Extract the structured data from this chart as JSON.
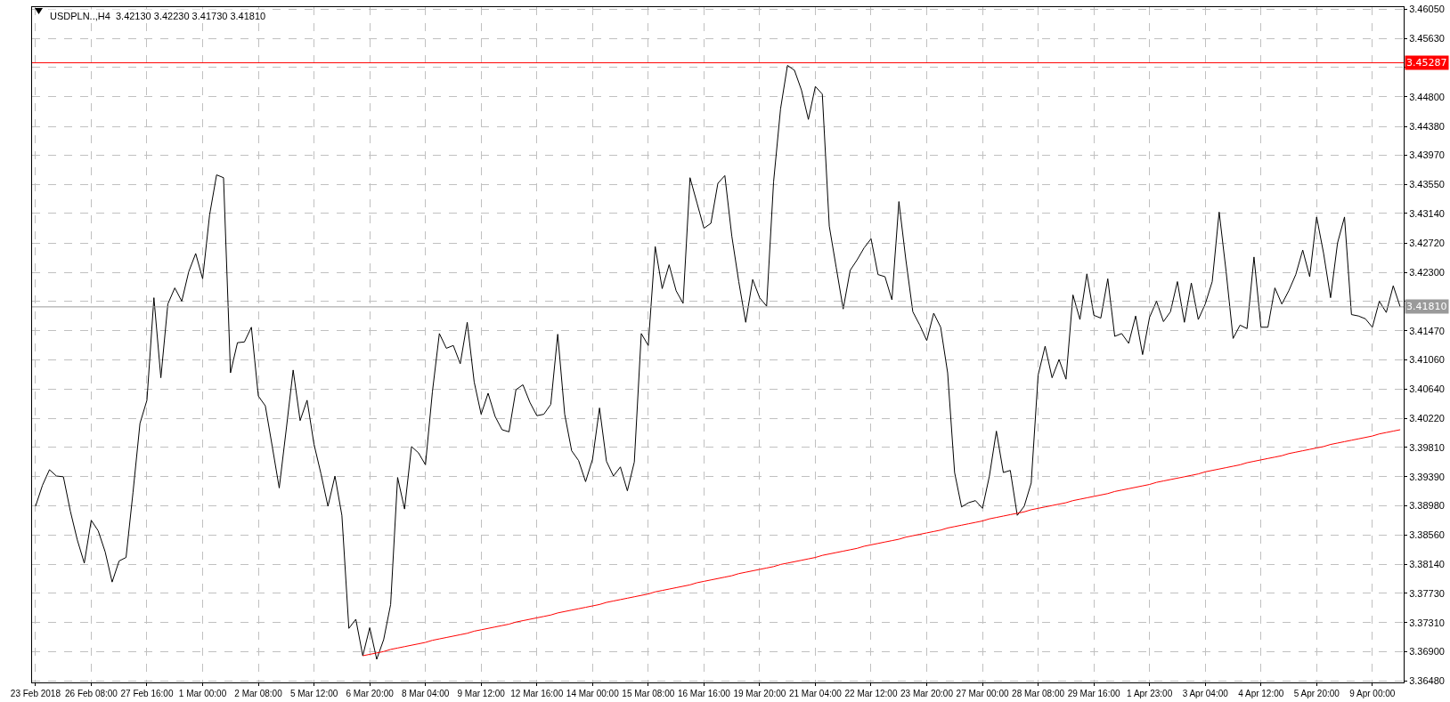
{
  "chart_data": {
    "type": "line",
    "title": "USDPLN..,H4  3.42130 3.42230 3.41730 3.41810",
    "categories": [
      "23 Feb 2018",
      null,
      null,
      null,
      null,
      null,
      null,
      null,
      "26 Feb 08:00",
      null,
      null,
      null,
      null,
      null,
      null,
      null,
      "27 Feb 16:00",
      null,
      null,
      null,
      null,
      null,
      null,
      null,
      "1 Mar 00:00",
      null,
      null,
      null,
      null,
      null,
      null,
      null,
      "2 Mar 08:00",
      null,
      null,
      null,
      null,
      null,
      null,
      null,
      "5 Mar 12:00",
      null,
      null,
      null,
      null,
      null,
      null,
      null,
      "6 Mar 20:00",
      null,
      null,
      null,
      null,
      null,
      null,
      null,
      "8 Mar 04:00",
      null,
      null,
      null,
      null,
      null,
      null,
      null,
      "9 Mar 12:00",
      null,
      null,
      null,
      null,
      null,
      null,
      null,
      "12 Mar 16:00",
      null,
      null,
      null,
      null,
      null,
      null,
      null,
      "14 Mar 00:00",
      null,
      null,
      null,
      null,
      null,
      null,
      null,
      "15 Mar 08:00",
      null,
      null,
      null,
      null,
      null,
      null,
      null,
      "16 Mar 16:00",
      null,
      null,
      null,
      null,
      null,
      null,
      null,
      "19 Mar 20:00",
      null,
      null,
      null,
      null,
      null,
      null,
      null,
      "21 Mar 04:00",
      null,
      null,
      null,
      null,
      null,
      null,
      null,
      "22 Mar 12:00",
      null,
      null,
      null,
      null,
      null,
      null,
      null,
      "23 Mar 20:00",
      null,
      null,
      null,
      null,
      null,
      null,
      null,
      "27 Mar 00:00",
      null,
      null,
      null,
      null,
      null,
      null,
      null,
      "28 Mar 08:00",
      null,
      null,
      null,
      null,
      null,
      null,
      null,
      "29 Mar 16:00",
      null,
      null,
      null,
      null,
      null,
      null,
      null,
      "1 Apr 23:00",
      null,
      null,
      null,
      null,
      null,
      null,
      null,
      "3 Apr 04:00",
      null,
      null,
      null,
      null,
      null,
      null,
      null,
      "4 Apr 12:00",
      null,
      null,
      null,
      null,
      null,
      null,
      null,
      "5 Apr 20:00",
      null,
      null,
      null,
      null,
      null,
      null,
      null,
      "9 Apr 00:00",
      null,
      null,
      null,
      null
    ],
    "series": [
      {
        "color": "#000000",
        "values": [
          3.3897,
          3.3927,
          3.3949,
          3.394,
          3.3939,
          3.389,
          3.3849,
          3.3816,
          3.3877,
          3.3862,
          3.3832,
          3.3789,
          3.3819,
          3.3824,
          3.3917,
          3.4015,
          3.4048,
          3.4194,
          3.408,
          3.4185,
          3.4208,
          3.4189,
          3.4231,
          3.4257,
          3.4221,
          3.4312,
          3.4369,
          3.4365,
          3.4087,
          3.413,
          3.4131,
          3.4152,
          3.4054,
          3.404,
          3.3982,
          3.3923,
          3.4006,
          3.4091,
          3.4019,
          3.4048,
          3.3985,
          3.3943,
          3.3897,
          3.394,
          3.3884,
          3.3723,
          3.3736,
          3.3684,
          3.3724,
          3.3679,
          3.3707,
          3.3757,
          3.3938,
          3.3893,
          3.3982,
          3.3973,
          3.3956,
          3.406,
          3.4143,
          3.4122,
          3.4126,
          3.41,
          3.4159,
          3.4074,
          3.4028,
          3.4058,
          3.4025,
          3.4006,
          3.4003,
          3.4063,
          3.407,
          3.4045,
          3.4026,
          3.4028,
          3.4042,
          3.4142,
          3.4028,
          3.3976,
          3.3962,
          3.3932,
          3.3964,
          3.4037,
          3.3961,
          3.394,
          3.3953,
          3.3919,
          3.396,
          3.4143,
          3.4126,
          3.4267,
          3.4207,
          3.4241,
          3.4204,
          3.4186,
          3.4365,
          3.4329,
          3.4293,
          3.43,
          3.4357,
          3.4368,
          3.4282,
          3.4217,
          3.4159,
          3.422,
          3.4194,
          3.4182,
          3.4359,
          3.4463,
          3.4525,
          3.4518,
          3.449,
          3.4448,
          3.4495,
          3.4484,
          3.4296,
          3.4237,
          3.4178,
          3.4233,
          3.4248,
          3.4265,
          3.4278,
          3.4227,
          3.4224,
          3.4191,
          3.4331,
          3.4248,
          3.4174,
          3.4155,
          3.4133,
          3.4172,
          3.4152,
          3.4087,
          3.3945,
          3.3896,
          3.3902,
          3.3905,
          3.3894,
          3.394,
          3.4004,
          3.3945,
          3.3948,
          3.3884,
          3.3897,
          3.393,
          3.4084,
          3.4125,
          3.408,
          3.4106,
          3.4078,
          3.4198,
          3.4163,
          3.4228,
          3.4169,
          3.4165,
          3.4221,
          3.4139,
          3.4143,
          3.4129,
          3.4168,
          3.4113,
          3.4166,
          3.4189,
          3.416,
          3.4174,
          3.4217,
          3.4159,
          3.4215,
          3.4163,
          3.4185,
          3.4217,
          3.4316,
          3.4231,
          3.4136,
          3.4155,
          3.415,
          3.4252,
          3.4152,
          3.4152,
          3.4208,
          3.4185,
          3.4204,
          3.4227,
          3.4262,
          3.4224,
          3.4309,
          3.4257,
          3.4194,
          3.4272,
          3.4309,
          3.417,
          3.4168,
          3.4164,
          3.4152,
          3.4189,
          3.4173,
          3.4211,
          3.4181
        ]
      },
      {
        "type": "line",
        "color": "#ff0000",
        "values": [
          null,
          null,
          null,
          null,
          null,
          null,
          null,
          null,
          null,
          null,
          null,
          null,
          null,
          null,
          null,
          null,
          null,
          null,
          null,
          null,
          null,
          null,
          null,
          null,
          null,
          null,
          null,
          null,
          null,
          null,
          null,
          null,
          null,
          null,
          null,
          null,
          null,
          null,
          null,
          null,
          null,
          null,
          null,
          null,
          null,
          null,
          null,
          3.3684,
          3.3686,
          3.3688,
          3.369,
          3.3693,
          3.3695,
          3.3697,
          3.3699,
          3.3701,
          3.3703,
          3.3706,
          3.3708,
          3.371,
          3.3712,
          3.3714,
          3.3716,
          3.3719,
          3.3721,
          3.3723,
          3.3725,
          3.3727,
          3.3729,
          3.3732,
          3.3734,
          3.3736,
          3.3738,
          3.374,
          3.3742,
          3.3745,
          3.3747,
          3.3749,
          3.3751,
          3.3753,
          3.3755,
          3.3757,
          3.376,
          3.3762,
          3.3764,
          3.3766,
          3.3768,
          3.377,
          3.3772,
          3.3775,
          3.3777,
          3.3779,
          3.3781,
          3.3783,
          3.3785,
          3.3788,
          3.379,
          3.3792,
          3.3794,
          3.3796,
          3.3798,
          3.3801,
          3.3803,
          3.3805,
          3.3807,
          3.3809,
          3.3811,
          3.3814,
          3.3816,
          3.3818,
          3.382,
          3.3822,
          3.3824,
          3.3827,
          3.3829,
          3.3831,
          3.3833,
          3.3835,
          3.3837,
          3.384,
          3.3842,
          3.3844,
          3.3846,
          3.3848,
          3.385,
          3.3853,
          3.3855,
          3.3857,
          3.3859,
          3.3861,
          3.3863,
          3.3866,
          3.3868,
          3.387,
          3.3872,
          3.3874,
          3.3876,
          3.3879,
          3.3881,
          3.3883,
          3.3885,
          3.3887,
          3.3889,
          3.3892,
          3.3894,
          3.3896,
          3.3898,
          3.39,
          3.3902,
          3.3905,
          3.3907,
          3.3909,
          3.3911,
          3.3913,
          3.3915,
          3.3918,
          3.392,
          3.3922,
          3.3924,
          3.3926,
          3.3928,
          3.3931,
          3.3933,
          3.3935,
          3.3937,
          3.3939,
          3.3941,
          3.3943,
          3.3946,
          3.3948,
          3.395,
          3.3952,
          3.3954,
          3.3956,
          3.3959,
          3.3961,
          3.3963,
          3.3965,
          3.3967,
          3.3969,
          3.3972,
          3.3974,
          3.3976,
          3.3978,
          3.398,
          3.3982,
          3.3985,
          3.3987,
          3.3989,
          3.3991,
          3.3993,
          3.3995,
          3.3997,
          3.4,
          3.4002,
          3.4004,
          3.4006
        ]
      }
    ],
    "ylim": [
      3.3646,
      3.4608
    ],
    "yticks": [
      {
        "value": 3.4605,
        "label": "3.46050"
      },
      {
        "value": 3.4563,
        "label": "3.45630"
      },
      {
        "value": 3.4522,
        "label": null
      },
      {
        "value": 3.448,
        "label": "3.44800"
      },
      {
        "value": 3.4438,
        "label": "3.44380"
      },
      {
        "value": 3.4397,
        "label": "3.43970"
      },
      {
        "value": 3.4355,
        "label": "3.43550"
      },
      {
        "value": 3.4314,
        "label": "3.43140"
      },
      {
        "value": 3.4272,
        "label": "3.42720"
      },
      {
        "value": 3.423,
        "label": "3.42300"
      },
      {
        "value": 3.4189,
        "label": null
      },
      {
        "value": 3.4147,
        "label": "3.41470"
      },
      {
        "value": 3.4106,
        "label": "3.41060"
      },
      {
        "value": 3.4064,
        "label": "3.40640"
      },
      {
        "value": 3.4022,
        "label": "3.40220"
      },
      {
        "value": 3.3981,
        "label": "3.39810"
      },
      {
        "value": 3.3939,
        "label": "3.39390"
      },
      {
        "value": 3.3898,
        "label": "3.38980"
      },
      {
        "value": 3.3856,
        "label": "3.38560"
      },
      {
        "value": 3.3814,
        "label": "3.38140"
      },
      {
        "value": 3.3773,
        "label": "3.37730"
      },
      {
        "value": 3.3731,
        "label": "3.37310"
      },
      {
        "value": 3.369,
        "label": "3.36900"
      },
      {
        "value": 3.3648,
        "label": "3.36480"
      }
    ],
    "ref_lines": [
      {
        "axis": "y",
        "value": 3.45287,
        "label": "3.45287",
        "color": "#ff0000"
      },
      {
        "axis": "y",
        "value": 3.4181,
        "label": "3.41810",
        "color": "#9a9a9a"
      }
    ],
    "grid": true,
    "marker": "none",
    "line_style": "solid"
  }
}
